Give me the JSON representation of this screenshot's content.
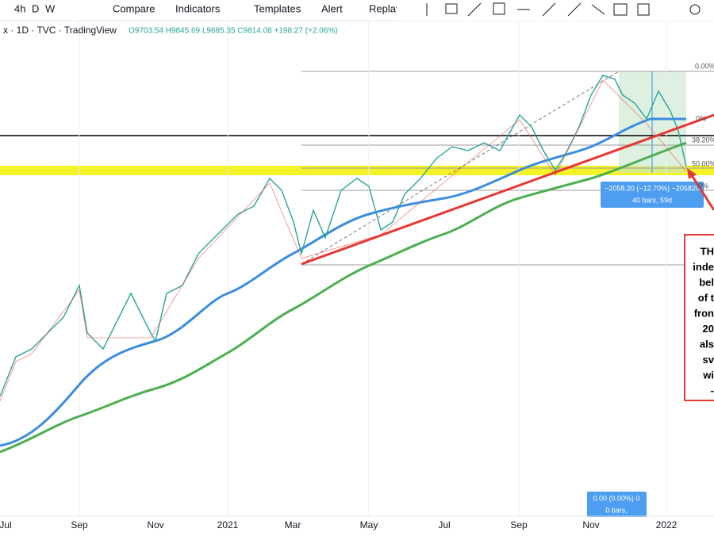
{
  "toolbar": {
    "intervals": [
      "4h",
      "D",
      "W"
    ],
    "buttons": [
      "Compare",
      "Indicators",
      "Templates",
      "Alert",
      "Replay"
    ]
  },
  "legend": {
    "symbol": "x · 1D · TVC · TradingView",
    "ohlc": "O9703.54  H9845.69  L9685.35  C9814.08  +198.27 (+2.06%)"
  },
  "fib_labels": [
    "0.00%",
    "0%",
    "38.20%",
    "50.00%",
    "0%"
  ],
  "measure": {
    "line1": "−2058.20 (−12.70%) −205820",
    "line2": "40 bars, 59d"
  },
  "cursor_box": {
    "line1": "0.00 (0.00%) 0",
    "line2": "0 bars,"
  },
  "annotation": [
    "TH",
    "inde",
    "bel",
    "of t",
    "fron",
    "20",
    "als",
    "sv",
    "wi",
    "-"
  ],
  "x_axis": [
    "Jul",
    "Sep",
    "Nov",
    "2021",
    "Mar",
    "May",
    "Jul",
    "Sep",
    "Nov",
    "2022"
  ]
}
